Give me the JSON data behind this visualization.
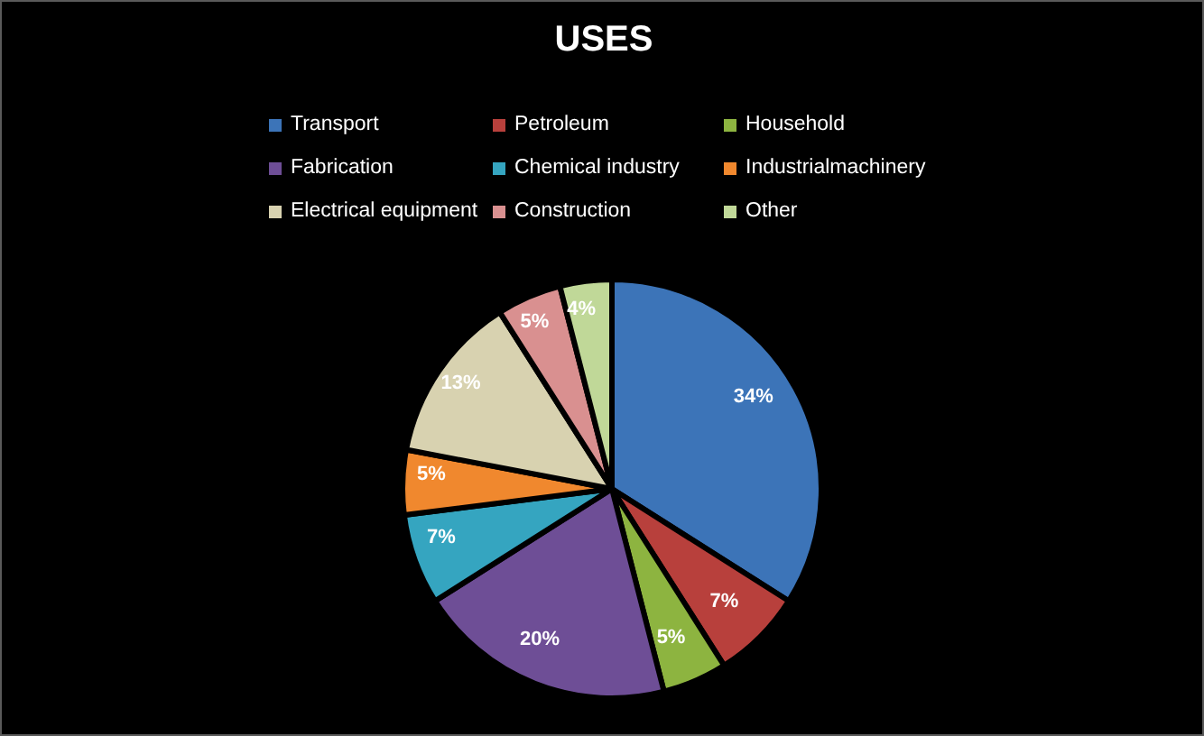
{
  "chart_data": {
    "type": "pie",
    "title": "USES",
    "categories": [
      "Transport",
      "Petroleum",
      "Household",
      "Fabrication",
      "Chemical industry",
      "Industrialmachinery",
      "Electrical equipment",
      "Construction",
      "Other"
    ],
    "values": [
      34,
      7,
      5,
      20,
      7,
      5,
      13,
      5,
      4
    ],
    "colors": [
      "#3c74b8",
      "#b8403c",
      "#8db440",
      "#6e4e96",
      "#35a5c0",
      "#f0882e",
      "#d8d2b0",
      "#d99090",
      "#c0d898"
    ],
    "value_labels": [
      "34%",
      "7%",
      "5%",
      "20%",
      "7%",
      "5%",
      "13%",
      "5%",
      "4%"
    ],
    "legend": "top"
  }
}
